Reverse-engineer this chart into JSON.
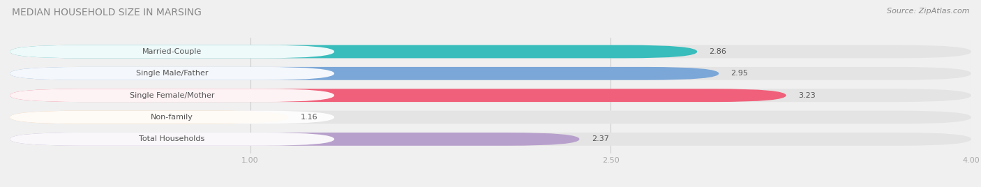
{
  "title": "MEDIAN HOUSEHOLD SIZE IN MARSING",
  "source": "Source: ZipAtlas.com",
  "categories": [
    "Married-Couple",
    "Single Male/Father",
    "Single Female/Mother",
    "Non-family",
    "Total Households"
  ],
  "values": [
    2.86,
    2.95,
    3.23,
    1.16,
    2.37
  ],
  "bar_colors": [
    "#38bcbc",
    "#7ba7d8",
    "#f0607a",
    "#f5c99a",
    "#b8a0cc"
  ],
  "xlim_data": [
    0.0,
    4.0
  ],
  "xstart": 0.0,
  "xticks": [
    1.0,
    2.5,
    4.0
  ],
  "xtick_labels": [
    "1.00",
    "2.50",
    "4.00"
  ],
  "background_color": "#f0f0f0",
  "bar_bg_color": "#e4e4e4",
  "label_bg_color": "#ffffff",
  "title_color": "#888888",
  "label_color": "#555555",
  "value_color": "#555555",
  "tick_color": "#aaaaaa",
  "source_color": "#888888",
  "title_fontsize": 10,
  "label_fontsize": 8,
  "value_fontsize": 8,
  "source_fontsize": 8
}
